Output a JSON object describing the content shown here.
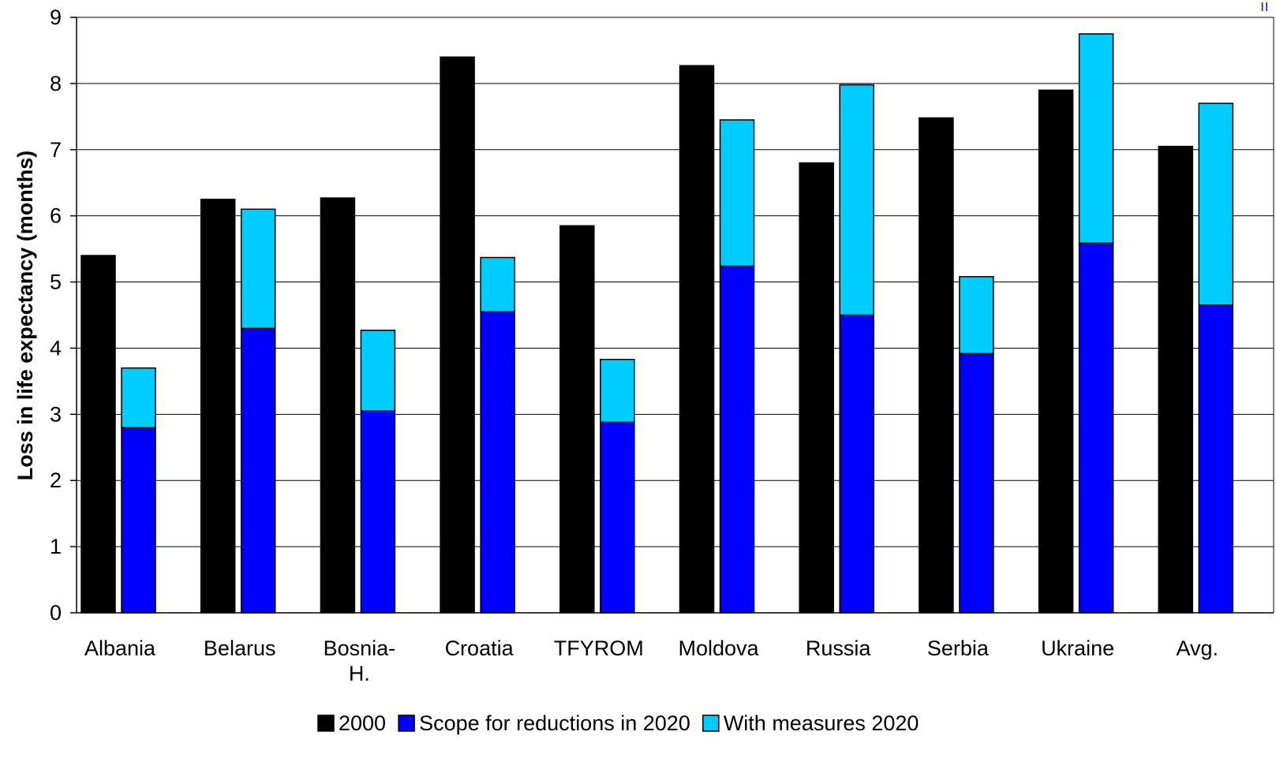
{
  "chart_data": {
    "type": "bar",
    "ylabel": "Loss in life expectancy (months)",
    "xlabel": "",
    "ylim": [
      0,
      9
    ],
    "yticks": [
      0,
      1,
      2,
      3,
      4,
      5,
      6,
      7,
      8,
      9
    ],
    "grid": true,
    "legend_position": "bottom-center",
    "categories": [
      [
        "Albania"
      ],
      [
        "Belarus"
      ],
      [
        "Bosnia-",
        "H."
      ],
      [
        "Croatia"
      ],
      [
        "TFYROM"
      ],
      [
        "Moldova"
      ],
      [
        "Russia"
      ],
      [
        "Serbia"
      ],
      [
        "Ukraine"
      ],
      [
        "Avg."
      ]
    ],
    "series": [
      {
        "name": "2000",
        "color": "#000000",
        "stack": "a",
        "values": [
          5.4,
          6.25,
          6.27,
          8.4,
          5.85,
          8.27,
          6.8,
          7.48,
          7.9,
          7.05
        ]
      },
      {
        "name": "Scope for reductions in 2020",
        "color": "#0000ff",
        "stack": "b",
        "values": [
          2.8,
          4.3,
          3.05,
          4.55,
          2.88,
          5.24,
          4.5,
          3.92,
          5.59,
          4.65
        ]
      },
      {
        "name": "With measures 2020",
        "color": "#00ccff",
        "stack": "b",
        "values": [
          0.9,
          1.8,
          1.22,
          0.82,
          0.95,
          2.21,
          3.48,
          1.16,
          3.16,
          3.05
        ]
      }
    ]
  }
}
